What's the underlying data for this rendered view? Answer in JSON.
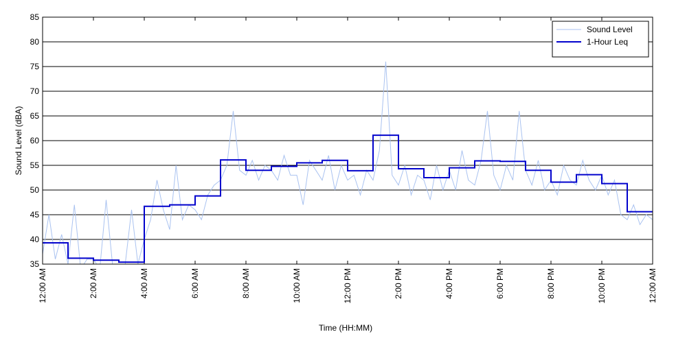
{
  "chart_data": {
    "type": "line",
    "xlabel": "Time (HH:MM)",
    "ylabel": "Sound Level (dBA)",
    "xlim": [
      0,
      24
    ],
    "ylim": [
      35,
      85
    ],
    "xticks": [
      {
        "value": 0,
        "label": "12:00 AM"
      },
      {
        "value": 2,
        "label": "2:00 AM"
      },
      {
        "value": 4,
        "label": "4:00 AM"
      },
      {
        "value": 6,
        "label": "6:00 AM"
      },
      {
        "value": 8,
        "label": "8:00 AM"
      },
      {
        "value": 10,
        "label": "10:00 AM"
      },
      {
        "value": 12,
        "label": "12:00 PM"
      },
      {
        "value": 14,
        "label": "2:00 PM"
      },
      {
        "value": 16,
        "label": "4:00 PM"
      },
      {
        "value": 18,
        "label": "6:00 PM"
      },
      {
        "value": 20,
        "label": "8:00 PM"
      },
      {
        "value": 22,
        "label": "10:00 PM"
      },
      {
        "value": 24,
        "label": "12:00 AM"
      }
    ],
    "yticks": [
      35,
      40,
      45,
      50,
      55,
      60,
      65,
      70,
      75,
      80,
      85
    ],
    "grid": true,
    "legend": "upper right",
    "series": [
      {
        "name": "Sound Level",
        "color": "#a9c2f0",
        "x": [
          0,
          0.25,
          0.5,
          0.75,
          1,
          1.25,
          1.5,
          1.75,
          2,
          2.25,
          2.5,
          2.75,
          3,
          3.25,
          3.5,
          3.75,
          4,
          4.25,
          4.5,
          4.75,
          5,
          5.25,
          5.5,
          5.75,
          6,
          6.25,
          6.5,
          6.75,
          7,
          7.25,
          7.5,
          7.75,
          8,
          8.25,
          8.5,
          8.75,
          9,
          9.25,
          9.5,
          9.75,
          10,
          10.25,
          10.5,
          10.75,
          11,
          11.25,
          11.5,
          11.75,
          12,
          12.25,
          12.5,
          12.75,
          13,
          13.25,
          13.5,
          13.75,
          14,
          14.25,
          14.5,
          14.75,
          15,
          15.25,
          15.5,
          15.75,
          16,
          16.25,
          16.5,
          16.75,
          17,
          17.25,
          17.5,
          17.75,
          18,
          18.25,
          18.5,
          18.75,
          19,
          19.25,
          19.5,
          19.75,
          20,
          20.25,
          20.5,
          20.75,
          21,
          21.25,
          21.5,
          21.75,
          22,
          22.25,
          22.5,
          22.75,
          23,
          23.25,
          23.5,
          23.75,
          24
        ],
        "values": [
          37,
          45,
          36,
          41,
          35,
          47,
          34,
          36,
          36,
          34,
          48,
          35,
          34,
          35,
          46,
          35,
          40,
          44,
          52,
          46,
          42,
          55,
          44,
          47,
          46,
          44,
          49,
          51,
          52,
          55,
          66,
          54,
          53,
          56,
          52,
          55,
          54,
          52,
          57,
          53,
          53,
          47,
          56,
          54,
          52,
          57,
          50,
          55,
          52,
          53,
          49,
          54,
          52,
          58,
          76,
          53,
          51,
          55,
          49,
          53,
          52,
          48,
          55,
          50,
          54,
          50,
          58,
          52,
          51,
          56,
          66,
          53,
          50,
          55,
          52,
          66,
          54,
          51,
          56,
          50,
          52,
          49,
          55,
          52,
          51,
          56,
          52,
          50,
          53,
          49,
          52,
          45,
          44,
          47,
          43,
          45,
          44
        ]
      },
      {
        "name": "1-Hour Leq",
        "color": "#0000cc",
        "step": true,
        "bins": [
          0,
          1,
          2,
          3,
          4,
          5,
          6,
          7,
          8,
          9,
          10,
          11,
          12,
          13,
          14,
          15,
          16,
          17,
          18,
          19,
          20,
          21,
          22,
          23,
          24
        ],
        "values": [
          39.3,
          36.2,
          35.8,
          35.4,
          46.7,
          47.0,
          48.8,
          56.1,
          54.0,
          54.8,
          55.5,
          56.0,
          53.9,
          61.1,
          54.3,
          52.5,
          54.5,
          55.9,
          55.8,
          54.0,
          51.6,
          53.1,
          51.3,
          45.6
        ]
      }
    ]
  }
}
